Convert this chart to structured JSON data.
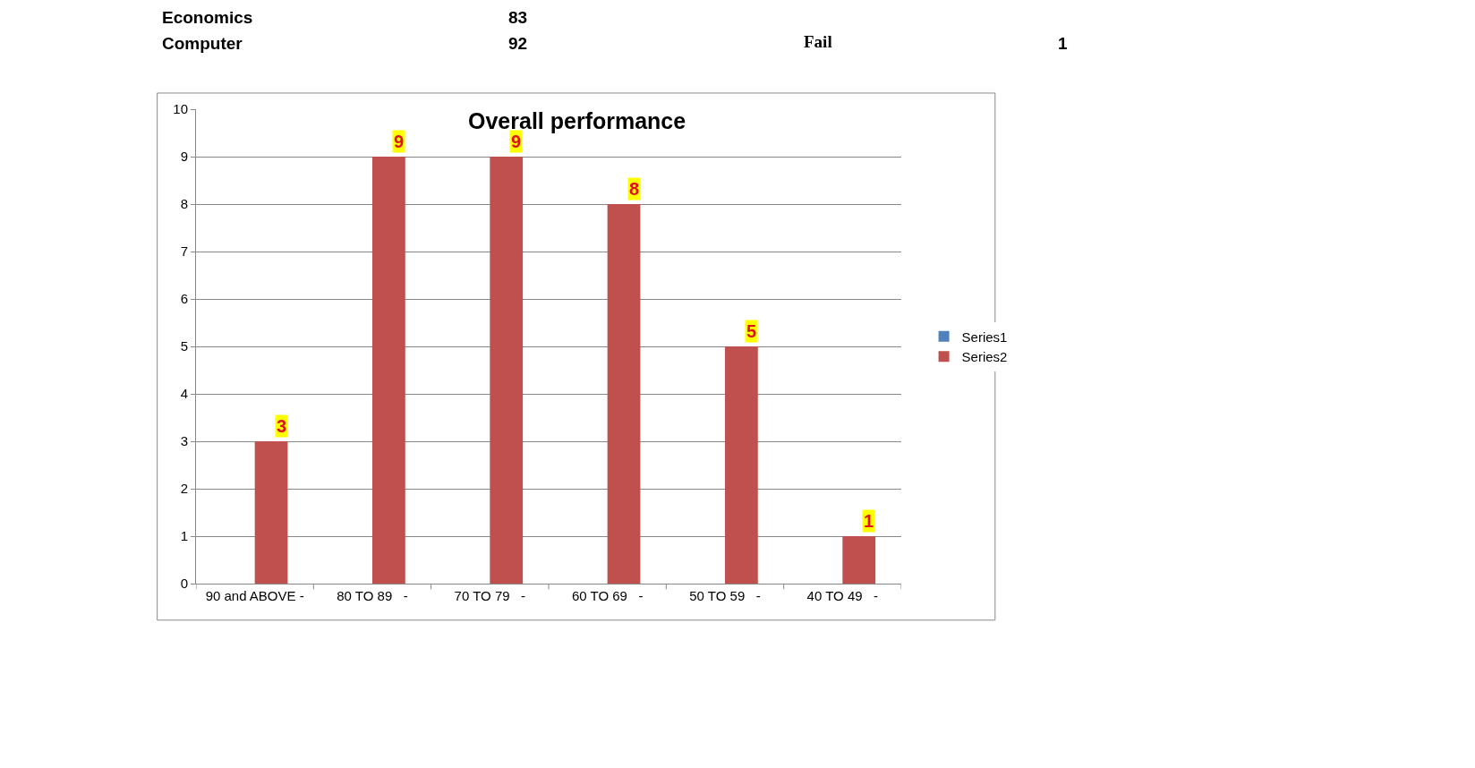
{
  "chart_data": {
    "type": "bar",
    "title": "Overall performance",
    "categories": [
      "90 and ABOVE -",
      "80 TO 89   -",
      "70 TO 79   -",
      "60 TO 69   -",
      "50 TO 59   -",
      "40 TO 49   -"
    ],
    "series": [
      {
        "name": "Series1",
        "color": "#4f81bd",
        "values": [
          null,
          null,
          null,
          null,
          null,
          null
        ]
      },
      {
        "name": "Series2",
        "color": "#c0504d",
        "values": [
          3,
          9,
          9,
          8,
          5,
          1
        ]
      }
    ],
    "ylim": [
      0,
      10
    ],
    "yticks": [
      0,
      1,
      2,
      3,
      4,
      5,
      6,
      7,
      8,
      9,
      10
    ],
    "grid": "y",
    "legend": "right",
    "data_labels": true,
    "annotations": [
      "Economics",
      "83",
      "Computer",
      "92",
      "Fail",
      "1"
    ]
  }
}
